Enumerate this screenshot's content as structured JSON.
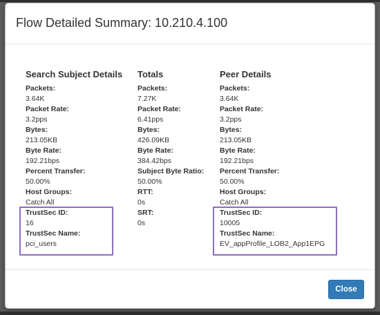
{
  "modal": {
    "title": "Flow Detailed Summary: 10.210.4.100",
    "close_label": "Close"
  },
  "columns": [
    {
      "heading": "Search Subject Details",
      "fields": [
        {
          "label": "Packets:",
          "value": "3.64K"
        },
        {
          "label": "Packet Rate:",
          "value": "3.2pps"
        },
        {
          "label": "Bytes:",
          "value": "213.05KB"
        },
        {
          "label": "Byte Rate:",
          "value": "192.21bps"
        },
        {
          "label": "Percent Transfer:",
          "value": "50.00%"
        },
        {
          "label": "Host Groups:",
          "value": "Catch All"
        },
        {
          "label": "TrustSec ID:",
          "value": "16"
        },
        {
          "label": "TrustSec Name:",
          "value": "pci_users"
        }
      ]
    },
    {
      "heading": "Totals",
      "fields": [
        {
          "label": "Packets:",
          "value": "7.27K"
        },
        {
          "label": "Packet Rate:",
          "value": "6.41pps"
        },
        {
          "label": "Bytes:",
          "value": "426.09KB"
        },
        {
          "label": "Byte Rate:",
          "value": "384.42bps"
        },
        {
          "label": "Subject Byte Ratio:",
          "value": "50.00%"
        },
        {
          "label": "RTT:",
          "value": "0s"
        },
        {
          "label": "SRT:",
          "value": "0s"
        }
      ]
    },
    {
      "heading": "Peer Details",
      "fields": [
        {
          "label": "Packets:",
          "value": "3.64K"
        },
        {
          "label": "Packet Rate:",
          "value": "3.2pps"
        },
        {
          "label": "Bytes:",
          "value": "213.05KB"
        },
        {
          "label": "Byte Rate:",
          "value": "192.21bps"
        },
        {
          "label": "Percent Transfer:",
          "value": "50.00%"
        },
        {
          "label": "Host Groups:",
          "value": "Catch All"
        },
        {
          "label": "TrustSec ID:",
          "value": "10005"
        },
        {
          "label": "TrustSec Name:",
          "value": "EV_appProfile_LOB2_App1EPG"
        }
      ]
    }
  ],
  "colors": {
    "highlight_border": "#8e6bbf",
    "primary_button": "#337ab7"
  }
}
